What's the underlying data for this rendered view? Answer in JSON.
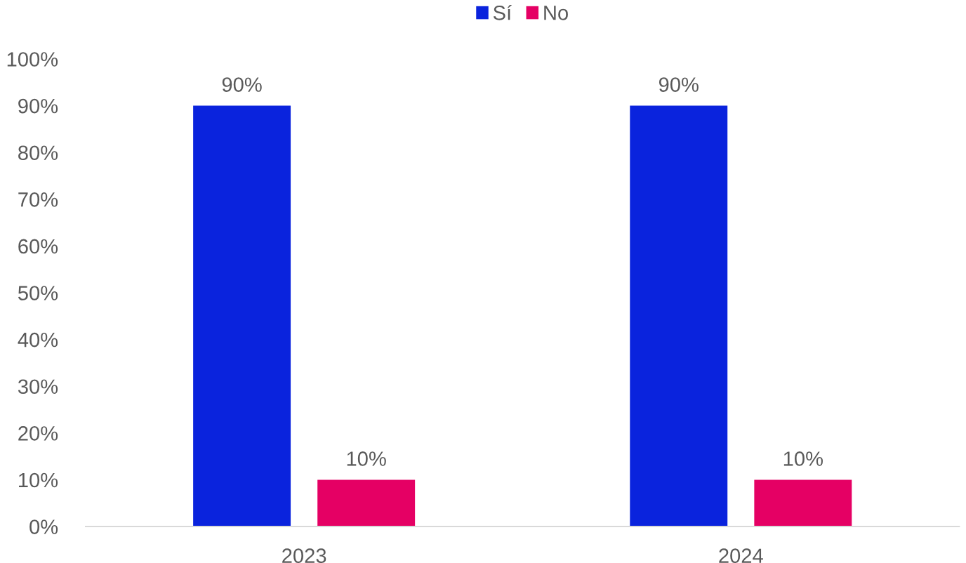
{
  "chart_data": {
    "type": "bar",
    "categories": [
      "2023",
      "2024"
    ],
    "series": [
      {
        "name": "Sí",
        "color": "#0a23dd",
        "values": [
          90,
          90
        ],
        "value_labels": [
          "90%",
          "90%"
        ]
      },
      {
        "name": "No",
        "color": "#e50064",
        "values": [
          10,
          10
        ],
        "value_labels": [
          "10%",
          "10%"
        ]
      }
    ],
    "ylim": [
      0,
      100
    ],
    "yticks": [
      {
        "value": 0,
        "label": "0%"
      },
      {
        "value": 10,
        "label": "10%"
      },
      {
        "value": 20,
        "label": "20%"
      },
      {
        "value": 30,
        "label": "30%"
      },
      {
        "value": 40,
        "label": "40%"
      },
      {
        "value": 50,
        "label": "50%"
      },
      {
        "value": 60,
        "label": "60%"
      },
      {
        "value": 70,
        "label": "70%"
      },
      {
        "value": 80,
        "label": "80%"
      },
      {
        "value": 90,
        "label": "90%"
      },
      {
        "value": 100,
        "label": "100%"
      }
    ],
    "grid": false,
    "legend": "top"
  }
}
